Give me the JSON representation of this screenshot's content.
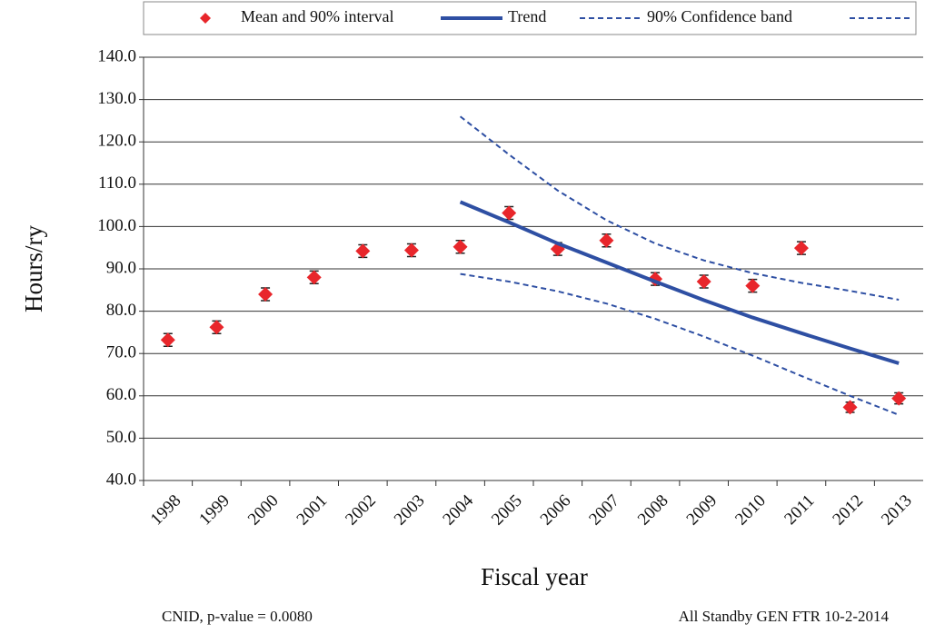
{
  "chart_data": {
    "type": "line",
    "xlabel": "Fiscal year",
    "ylabel": "Hours/ry",
    "categories": [
      "1998",
      "1999",
      "2000",
      "2001",
      "2002",
      "2003",
      "2004",
      "2005",
      "2006",
      "2007",
      "2008",
      "2009",
      "2010",
      "2011",
      "2012",
      "2013"
    ],
    "series": [
      {
        "name": "Mean and 90% interval",
        "color": "#e8262b",
        "style": "marker",
        "values": [
          73.2,
          76.2,
          84.0,
          88.0,
          94.2,
          94.4,
          95.2,
          103.2,
          94.7,
          96.7,
          87.6,
          87.0,
          86.0,
          94.9,
          57.3,
          59.4
        ],
        "errors": [
          1.5,
          1.5,
          1.5,
          1.5,
          1.5,
          1.5,
          1.5,
          1.5,
          1.5,
          1.5,
          1.5,
          1.5,
          1.5,
          1.5,
          1.2,
          1.3
        ]
      },
      {
        "name": "Trend",
        "color": "#2e4fa3",
        "style": "solid",
        "values": [
          null,
          null,
          null,
          null,
          null,
          null,
          105.8,
          101.0,
          96.0,
          91.5,
          87.0,
          82.6,
          78.5,
          74.8,
          71.2,
          67.7
        ]
      },
      {
        "name": "90% Confidence band",
        "color": "#2e4fa3",
        "style": "dashed",
        "values": [
          null,
          null,
          null,
          null,
          null,
          null,
          126.0,
          117.0,
          108.5,
          101.5,
          96.0,
          92.0,
          89.0,
          86.7,
          84.8,
          82.7
        ]
      },
      {
        "color": "#2e4fa3",
        "style": "dashed",
        "values": [
          null,
          null,
          null,
          null,
          null,
          null,
          88.8,
          87.0,
          84.7,
          81.8,
          78.2,
          74.0,
          69.5,
          64.7,
          60.0,
          55.5
        ]
      }
    ],
    "ylim": [
      40,
      140
    ],
    "yticks": [
      {
        "value": 40,
        "label": "40.0"
      },
      {
        "value": 50,
        "label": "50.0"
      },
      {
        "value": 60,
        "label": "60.0"
      },
      {
        "value": 70,
        "label": "70.0"
      },
      {
        "value": 80,
        "label": "80.0"
      },
      {
        "value": 90,
        "label": "90.0"
      },
      {
        "value": 100,
        "label": "100.0"
      },
      {
        "value": 110,
        "label": "110.0"
      },
      {
        "value": 120,
        "label": "120.0"
      },
      {
        "value": 130,
        "label": "130.0"
      },
      {
        "value": 140,
        "label": "140.0"
      }
    ],
    "grid": true,
    "annotations": [
      "CNID, p-value = 0.0080",
      "All Standby GEN FTR 10-2-2014"
    ]
  }
}
